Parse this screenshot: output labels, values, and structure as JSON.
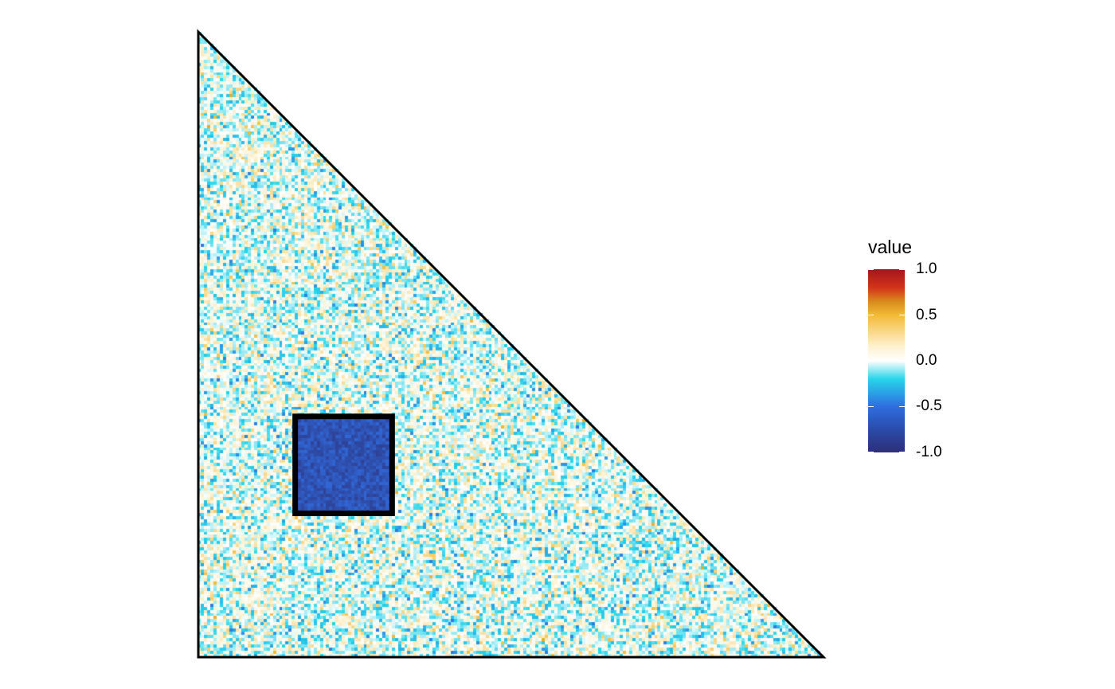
{
  "chart_data": {
    "type": "heatmap",
    "layout": "lower-triangle",
    "grid_size": 200,
    "value_range": [
      -1.0,
      1.0
    ],
    "background_noise": {
      "distribution": "mostly near 0 with scattered values up to about ±0.5"
    },
    "highlight_block": {
      "rows": [
        123,
        153
      ],
      "cols": [
        31,
        61
      ],
      "value_range": [
        -0.85,
        -0.55
      ],
      "outlined": true
    },
    "legend": {
      "title": "value",
      "placement": "right",
      "ticks": [
        {
          "value": 1.0,
          "label": "1.0"
        },
        {
          "value": 0.5,
          "label": "0.5"
        },
        {
          "value": 0.0,
          "label": "0.0"
        },
        {
          "value": -0.5,
          "label": "-0.5"
        },
        {
          "value": -1.0,
          "label": "-1.0"
        }
      ]
    },
    "colors": {
      "minus_one": "#2e2f77",
      "minus_half": "#2f6de0",
      "minus_quarter": "#27d4ea",
      "zero": "#ffffff",
      "plus_quarter": "#fff1cf",
      "plus_half": "#f2ba36",
      "plus_three_quarters": "#d98e1c",
      "plus_one": "#a3161b"
    }
  }
}
